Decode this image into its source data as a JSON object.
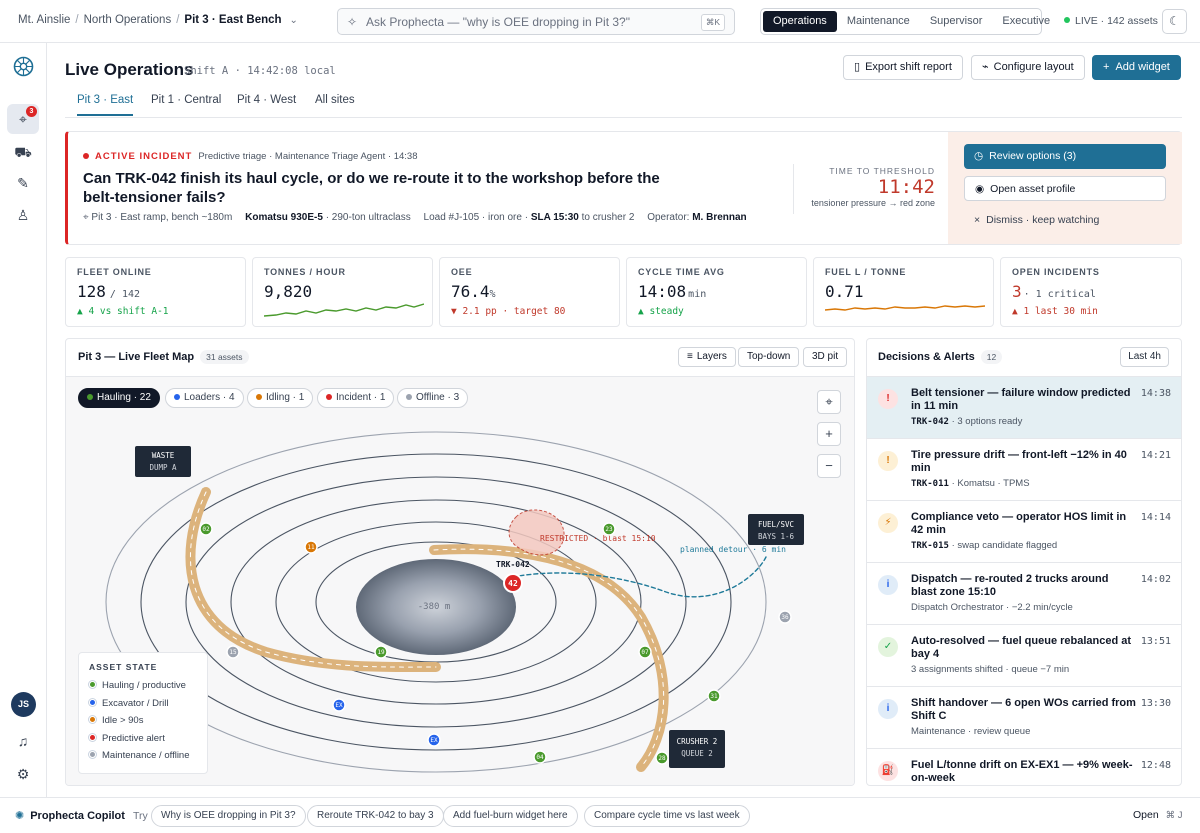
{
  "breadcrumb": {
    "items": [
      "Mt. Ainslie",
      "North Operations",
      "Pit 3 · East Bench"
    ]
  },
  "search": {
    "placeholder": "Ask Prophecta — \"why is OEE dropping in Pit 3?\"",
    "shortcut": "⌘K"
  },
  "roles": {
    "items": [
      "Operations",
      "Maintenance",
      "Supervisor",
      "Executive"
    ],
    "active": "Operations"
  },
  "status": {
    "live": "LIVE · 142 assets",
    "live_color": "#22c55e"
  },
  "sidebar": {
    "badge_count": "3",
    "avatar_initials": "JS"
  },
  "header": {
    "title": "Live Operations",
    "shift": "Shift A · 14:42:08 local",
    "export_label": "Export shift report",
    "configure_label": "Configure layout",
    "add_widget_label": "Add widget"
  },
  "tabs": [
    "Pit 3 · East",
    "Pit 1 · Central",
    "Pit 4 · West",
    "All sites"
  ],
  "incident": {
    "tag": "ACTIVE INCIDENT",
    "meta": "Predictive triage · Maintenance Triage Agent · 14:38",
    "question": "Can TRK-042 finish its haul cycle, or do we re-route it to the workshop before the belt-tensioner fails?",
    "location": "Pit 3 · East ramp, bench ~180m",
    "model": "Komatsu 930E-5",
    "model_class": "· 290-ton ultraclass",
    "load": "Load #J-105 · iron ore ·",
    "sla": "SLA 15:30",
    "sla_dest": "to crusher 2",
    "operator_label": "Operator:",
    "operator": "M. Brennan",
    "ttt_label": "TIME TO THRESHOLD",
    "ttt_value": "11:42",
    "ttt_sub": "tensioner pressure → red zone",
    "review_label": "Review options (3)",
    "profile_label": "Open asset profile",
    "dismiss_label": "Dismiss · keep watching"
  },
  "kpis": [
    {
      "label": "FLEET ONLINE",
      "value": "128",
      "unit": "/ 142",
      "delta": "▲ 4 vs shift A-1",
      "delta_color": "#16a34a"
    },
    {
      "label": "TONNES / HOUR",
      "value": "9,820",
      "unit": "",
      "delta": "",
      "delta_color": "#16a34a"
    },
    {
      "label": "OEE",
      "value": "76.4",
      "unit": "%",
      "delta": "▼ 2.1 pp · target 80",
      "delta_color": "#c0392b"
    },
    {
      "label": "CYCLE TIME AVG",
      "value": "14:08",
      "unit": "min",
      "delta": "▲ steady",
      "delta_color": "#16a34a"
    },
    {
      "label": "FUEL L / TONNE",
      "value": "0.71",
      "unit": "",
      "delta": "",
      "delta_color": "#d97706"
    },
    {
      "label": "OPEN INCIDENTS",
      "value": "3",
      "unit": "· 1 critical",
      "delta": "▲ 1 last 30 min",
      "delta_color": "#c0392b"
    }
  ],
  "map": {
    "title": "Pit 3 — Live Fleet Map",
    "asset_count": "31 assets",
    "buttons": [
      "Layers",
      "Top-down",
      "3D pit"
    ],
    "filters": [
      {
        "label": "Hauling · 22",
        "color": "#4a9a2d",
        "active": true
      },
      {
        "label": "Loaders · 4",
        "color": "#2563eb",
        "active": false
      },
      {
        "label": "Idling · 1",
        "color": "#d97706",
        "active": false
      },
      {
        "label": "Incident · 1",
        "color": "#dc2626",
        "active": false
      },
      {
        "label": "Offline · 3",
        "color": "#9ca3af",
        "active": false
      }
    ],
    "labels": {
      "waste_dump": [
        "WASTE",
        "DUMP A"
      ],
      "fuel_svc": [
        "FUEL/SVC",
        "BAYS 1-6"
      ],
      "crusher": [
        "CRUSHER 2",
        "QUEUE 2"
      ],
      "restricted": "RESTRICTED · blast 15:10",
      "detour": "planned detour · 6 min",
      "depth": "-380 m",
      "truck": "TRK-042"
    },
    "markers": [
      "02",
      "11",
      "23",
      "42",
      "19",
      "07",
      "15",
      "36",
      "31",
      "EX",
      "EX",
      "04",
      "28"
    ],
    "legend_title": "ASSET STATE",
    "legend": [
      {
        "label": "Hauling / productive",
        "color": "#4a9a2d"
      },
      {
        "label": "Excavator / Drill",
        "color": "#2563eb"
      },
      {
        "label": "Idle > 90s",
        "color": "#d97706"
      },
      {
        "label": "Predictive alert",
        "color": "#dc2626"
      },
      {
        "label": "Maintenance / offline",
        "color": "#9ca3af"
      }
    ]
  },
  "decisions": {
    "title": "Decisions & Alerts",
    "count": "12",
    "range": "Last 4h",
    "items": [
      {
        "icon": "!",
        "title": "Belt tensioner — failure window predicted in 11 min",
        "asset": "TRK-042",
        "detail": "· 3 options ready",
        "time": "14:38",
        "bg": "#fde2e2",
        "fg": "#dc2626"
      },
      {
        "icon": "!",
        "title": "Tire pressure drift — front-left −12% in 40 min",
        "asset": "TRK-011",
        "detail": "· Komatsu · TPMS",
        "time": "14:21",
        "bg": "#fdf0d5",
        "fg": "#d97706"
      },
      {
        "icon": "⚡",
        "title": "Compliance veto — operator HOS limit in 42 min",
        "asset": "TRK-015",
        "detail": "· swap candidate flagged",
        "time": "14:14",
        "bg": "#fdf0d5",
        "fg": "#d97706"
      },
      {
        "icon": "i",
        "title": "Dispatch — re-routed 2 trucks around blast zone 15:10",
        "asset": "",
        "detail": "Dispatch Orchestrator · −2.2 min/cycle",
        "time": "14:02",
        "bg": "#e0ecf8",
        "fg": "#2563eb"
      },
      {
        "icon": "✓",
        "title": "Auto-resolved — fuel queue rebalanced at bay 4",
        "asset": "",
        "detail": "3 assignments shifted · queue −7 min",
        "time": "13:51",
        "bg": "#e3f4dd",
        "fg": "#16a34a"
      },
      {
        "icon": "i",
        "title": "Shift handover — 6 open WOs carried from Shift C",
        "asset": "",
        "detail": "Maintenance · review queue",
        "time": "13:30",
        "bg": "#e0ecf8",
        "fg": "#2563eb"
      },
      {
        "icon": "⛽",
        "title": "Fuel L/tonne drift on EX-EX1 — +9% week-on-week",
        "asset": "",
        "detail": "",
        "time": "12:48",
        "bg": "#fde2e2",
        "fg": "#dc2626"
      }
    ]
  },
  "copilot": {
    "name": "Prophecta Copilot",
    "try_label": "Try",
    "suggestions": [
      "Why is OEE dropping in Pit 3?",
      "Reroute TRK-042 to bay 3",
      "Add fuel-burn widget here",
      "Compare cycle time vs last week"
    ],
    "open_label": "Open",
    "open_shortcut": "⌘ J"
  }
}
